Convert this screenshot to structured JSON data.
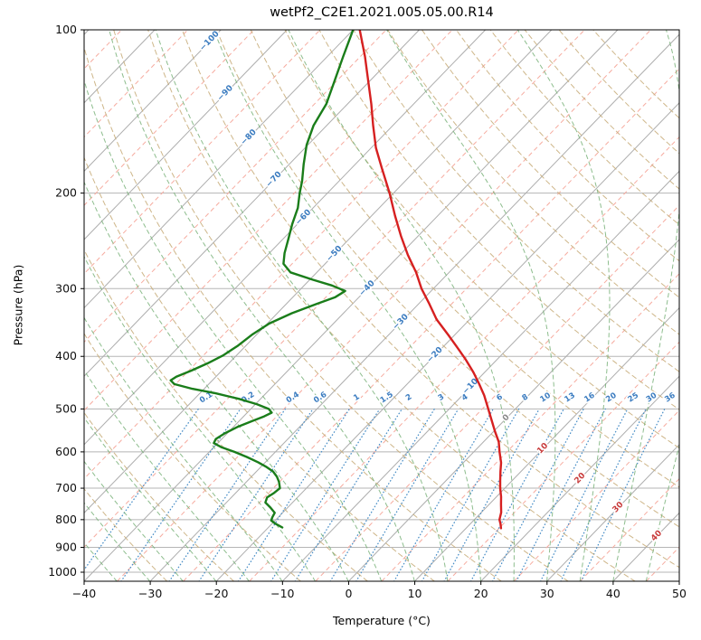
{
  "chart_data": {
    "type": "skewt_log_p",
    "title": "wetPf2_C2E1.2021.005.05.00.R14",
    "xlabel": "Temperature (°C)",
    "ylabel": "Pressure (hPa)",
    "x_ticks": [
      -40,
      -30,
      -20,
      -10,
      0,
      10,
      20,
      30,
      40,
      50
    ],
    "p_ticks": [
      100,
      200,
      300,
      400,
      500,
      600,
      700,
      800,
      900,
      1000
    ],
    "xlim_bottom_c": [
      -40,
      50
    ],
    "p_range_hpa": [
      100,
      1040
    ],
    "grid": true,
    "legend": "none",
    "isotherm_step_c": 10,
    "isotherm_labels": [
      {
        "t": -100,
        "p": 105
      },
      {
        "t": -90,
        "p": 131
      },
      {
        "t": -80,
        "p": 158
      },
      {
        "t": -70,
        "p": 189
      },
      {
        "t": -60,
        "p": 222
      },
      {
        "t": -50,
        "p": 259
      },
      {
        "t": -40,
        "p": 300
      },
      {
        "t": -30,
        "p": 346
      },
      {
        "t": -20,
        "p": 398
      },
      {
        "t": -10,
        "p": 455
      },
      {
        "t": 0,
        "p": 520
      },
      {
        "t": 10,
        "p": 592
      },
      {
        "t": 20,
        "p": 672
      },
      {
        "t": 30,
        "p": 760
      },
      {
        "t": 40,
        "p": 858
      }
    ],
    "mixing_ratio_g_kg": [
      0.1,
      0.2,
      0.4,
      0.6,
      1,
      1.5,
      2,
      3,
      4,
      6,
      8,
      10,
      13,
      16,
      20,
      25,
      30,
      36
    ],
    "mixing_label_p_hpa": 477,
    "mixing_line_top_p_hpa": 500,
    "dry_adiabats_k": {
      "start": 243,
      "end": 443,
      "step": 10
    },
    "moist_adiabats_c": {
      "start": -40,
      "end": 45,
      "step": 5
    },
    "series": [
      {
        "name": "temperature",
        "color": "#d62020",
        "points_p_t": [
          [
            100,
            -79
          ],
          [
            112,
            -74.3
          ],
          [
            125,
            -70
          ],
          [
            137,
            -66.4
          ],
          [
            150,
            -63
          ],
          [
            165,
            -59.3
          ],
          [
            180,
            -55.4
          ],
          [
            200,
            -50.6
          ],
          [
            220,
            -46.5
          ],
          [
            240,
            -42.6
          ],
          [
            260,
            -38.8
          ],
          [
            280,
            -35
          ],
          [
            300,
            -31.8
          ],
          [
            320,
            -28.4
          ],
          [
            342,
            -25
          ],
          [
            365,
            -21
          ],
          [
            385,
            -17.8
          ],
          [
            405,
            -14.8
          ],
          [
            428,
            -11.7
          ],
          [
            450,
            -9.1
          ],
          [
            472,
            -6.7
          ],
          [
            500,
            -4.1
          ],
          [
            525,
            -1.9
          ],
          [
            550,
            0.2
          ],
          [
            575,
            2.3
          ],
          [
            600,
            3.9
          ],
          [
            628,
            5.7
          ],
          [
            652,
            6.9
          ],
          [
            678,
            8.2
          ],
          [
            700,
            9.3
          ],
          [
            726,
            10.7
          ],
          [
            750,
            11.8
          ],
          [
            776,
            13
          ],
          [
            800,
            13.8
          ],
          [
            815,
            14.6
          ],
          [
            830,
            15.3
          ]
        ]
      },
      {
        "name": "dewpoint",
        "color": "#1a7d1a",
        "points_p_t": [
          [
            100,
            -80
          ],
          [
            112,
            -77.6
          ],
          [
            125,
            -75.2
          ],
          [
            137,
            -73.2
          ],
          [
            150,
            -72
          ],
          [
            163,
            -70.2
          ],
          [
            177,
            -67.8
          ],
          [
            190,
            -65.6
          ],
          [
            200,
            -64.2
          ],
          [
            213,
            -62.3
          ],
          [
            228,
            -60.8
          ],
          [
            243,
            -59.2
          ],
          [
            258,
            -57.7
          ],
          [
            270,
            -56.3
          ],
          [
            280,
            -54
          ],
          [
            289,
            -49.5
          ],
          [
            296,
            -45.8
          ],
          [
            303,
            -43
          ],
          [
            311,
            -43.6
          ],
          [
            320,
            -45.4
          ],
          [
            333,
            -47.8
          ],
          [
            348,
            -49.7
          ],
          [
            365,
            -50.7
          ],
          [
            382,
            -51.2
          ],
          [
            398,
            -52
          ],
          [
            412,
            -53.2
          ],
          [
            425,
            -54.6
          ],
          [
            436,
            -56
          ],
          [
            443,
            -56.3
          ],
          [
            450,
            -55.2
          ],
          [
            459,
            -51.8
          ],
          [
            468,
            -47.6
          ],
          [
            479,
            -43.3
          ],
          [
            490,
            -39.8
          ],
          [
            500,
            -37.3
          ],
          [
            508,
            -36.3
          ],
          [
            516,
            -36.9
          ],
          [
            526,
            -38
          ],
          [
            540,
            -39.4
          ],
          [
            555,
            -40.4
          ],
          [
            568,
            -40.9
          ],
          [
            578,
            -40.6
          ],
          [
            588,
            -38.9
          ],
          [
            600,
            -36.2
          ],
          [
            613,
            -33.6
          ],
          [
            627,
            -31.1
          ],
          [
            640,
            -29.1
          ],
          [
            652,
            -27.5
          ],
          [
            666,
            -26.2
          ],
          [
            681,
            -25.1
          ],
          [
            700,
            -24
          ],
          [
            714,
            -24.2
          ],
          [
            728,
            -24.6
          ],
          [
            744,
            -24.1
          ],
          [
            760,
            -22.6
          ],
          [
            777,
            -21.2
          ],
          [
            792,
            -20.9
          ],
          [
            803,
            -20.6
          ],
          [
            813,
            -19.6
          ],
          [
            822,
            -18.5
          ],
          [
            827,
            -17.9
          ]
        ]
      }
    ],
    "colors": {
      "isotherm": "#adadad",
      "isotherm_minor": "#f6ab9f",
      "pressure_grid": "#b5b5b5",
      "dry_adiabat": "#c9ae7c",
      "moist_adiabat": "#79b279",
      "mixing_ratio": "#4a8fc7",
      "label_neg": "#3b7cc0",
      "label_zero": "#8a8a8a",
      "label_pos": "#c83a3a",
      "frame": "#000000",
      "tick_text": "#111111"
    }
  }
}
